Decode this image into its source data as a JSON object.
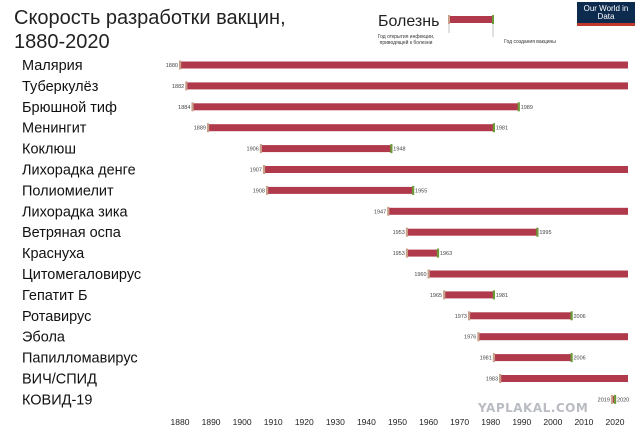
{
  "title_lines": [
    "Скорость разработки вакцин,",
    "1880-2020"
  ],
  "logo": "Our World in Data",
  "watermark": "YAPLAKAL.COM",
  "legend": {
    "label": "Болезнь",
    "start_note": "Год открытия инфекции, приводящей к болезни",
    "end_note": "Год создания вакцины"
  },
  "colors": {
    "bar": "#b03a4c",
    "start_marker": "#c8a08a",
    "end_marker": "#6b9b37"
  },
  "chart_data": {
    "type": "bar",
    "orientation": "horizontal-range",
    "title": "Скорость разработки вакцин, 1880-2020",
    "xlim": [
      1880,
      2020
    ],
    "x_ticks": [
      1880,
      1890,
      1900,
      1910,
      1920,
      1930,
      1940,
      1950,
      1960,
      1970,
      1980,
      1990,
      2000,
      2010,
      2020
    ],
    "x_ticks_display": [
      "1880",
      "1890",
      "1900",
      "1910",
      "1920",
      "1930",
      "1940",
      "1950",
      "1960",
      "1970",
      "1980",
      "1990",
      "2000",
      "2010",
      "2020"
    ],
    "series": [
      {
        "name": "Малярия",
        "start": 1880,
        "end": null,
        "start_label": "1880",
        "end_label": ""
      },
      {
        "name": "Туберкулёз",
        "start": 1882,
        "end": null,
        "start_label": "1882",
        "end_label": ""
      },
      {
        "name": "Брюшной тиф",
        "start": 1884,
        "end": 1989,
        "start_label": "1884",
        "end_label": "1989"
      },
      {
        "name": "Менингит",
        "start": 1889,
        "end": 1981,
        "start_label": "1889",
        "end_label": "1981"
      },
      {
        "name": "Коклюш",
        "start": 1906,
        "end": 1948,
        "start_label": "1906",
        "end_label": "1948"
      },
      {
        "name": "Лихорадка денге",
        "start": 1907,
        "end": null,
        "start_label": "1907",
        "end_label": ""
      },
      {
        "name": "Полиомиелит",
        "start": 1908,
        "end": 1955,
        "start_label": "1908",
        "end_label": "1955"
      },
      {
        "name": "Лихорадка зика",
        "start": 1947,
        "end": null,
        "start_label": "1947",
        "end_label": ""
      },
      {
        "name": "Ветряная оспа",
        "start": 1953,
        "end": 1995,
        "start_label": "1953",
        "end_label": "1995"
      },
      {
        "name": "Краснуха",
        "start": 1953,
        "end": 1963,
        "start_label": "1953",
        "end_label": "1963"
      },
      {
        "name": "Цитомегаловирус",
        "start": 1960,
        "end": null,
        "start_label": "1960",
        "end_label": ""
      },
      {
        "name": "Гепатит Б",
        "start": 1965,
        "end": 1981,
        "start_label": "1965",
        "end_label": "1981"
      },
      {
        "name": "Ротавирус",
        "start": 1973,
        "end": 2006,
        "start_label": "1973",
        "end_label": "2006"
      },
      {
        "name": "Эбола",
        "start": 1976,
        "end": null,
        "start_label": "1976",
        "end_label": ""
      },
      {
        "name": "Папилломавирус",
        "start": 1981,
        "end": 2006,
        "start_label": "1981",
        "end_label": "2006"
      },
      {
        "name": "ВИЧ/СПИД",
        "start": 1983,
        "end": null,
        "start_label": "1983",
        "end_label": ""
      },
      {
        "name": "КОВИД-19",
        "start": 2019,
        "end": 2020,
        "start_label": "2019",
        "end_label": "2020"
      }
    ]
  }
}
